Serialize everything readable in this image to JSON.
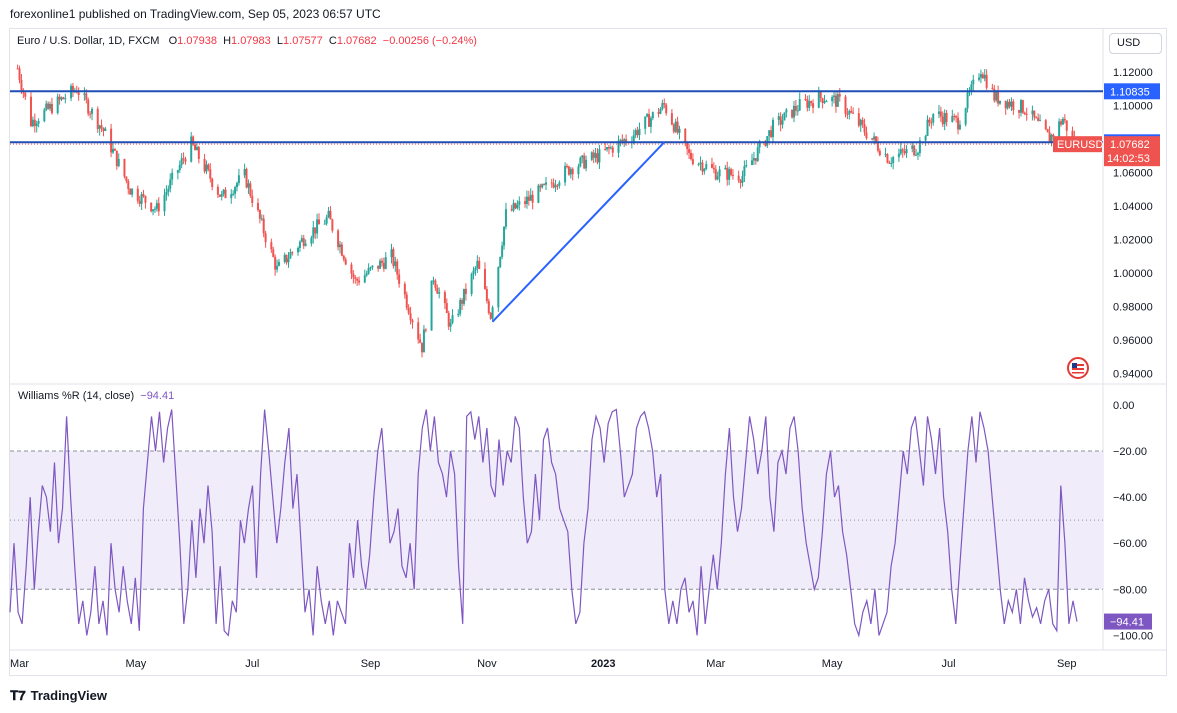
{
  "header": {
    "published": "forexonline1 published on TradingView.com, Sep 05, 2023 06:57 UTC"
  },
  "legend": {
    "symbol": "Euro / U.S. Dollar, 1D, FXCM",
    "o_label": "O",
    "o": "1.07938",
    "h_label": "H",
    "h": "1.07983",
    "l_label": "L",
    "l": "1.07577",
    "c_label": "C",
    "c": "1.07682",
    "change": "−0.00256 (−0.24%)"
  },
  "currency_button": "USD",
  "indicator": {
    "name": "Williams %R (14, close)",
    "value": "−94.41"
  },
  "footer": {
    "brand": "TradingView"
  },
  "colors": {
    "up": "#26a69a",
    "down": "#ef5350",
    "line": "#2962ff",
    "level": "#1e4fb5",
    "wr": "#7e57c2",
    "band": "#f0ecfa",
    "price_tag": "#ef5350",
    "level_tag": "#2962ff"
  },
  "chart_data": [
    {
      "type": "candlestick",
      "symbol": "EURUSD",
      "timeframe": "1D",
      "x_labels": [
        "Mar",
        "May",
        "Jul",
        "Sep",
        "Nov",
        "2023",
        "Mar",
        "May",
        "Jul",
        "Sep"
      ],
      "y_ticks": [
        "1.12000",
        "1.10000",
        "1.08000",
        "1.06000",
        "1.04000",
        "1.02000",
        "1.00000",
        "0.98000",
        "0.96000",
        "0.94000"
      ],
      "y_tick_values": [
        1.12,
        1.1,
        1.08,
        1.06,
        1.04,
        1.02,
        1.0,
        0.98,
        0.96,
        0.94
      ],
      "ylim": [
        0.935,
        1.13
      ],
      "close_path": [
        {
          "date": "2022-02-28",
          "close": 1.122
        },
        {
          "date": "2022-03-07",
          "close": 1.09
        },
        {
          "date": "2022-03-31",
          "close": 1.11
        },
        {
          "date": "2022-04-14",
          "close": 1.085
        },
        {
          "date": "2022-04-28",
          "close": 1.05
        },
        {
          "date": "2022-05-12",
          "close": 1.038
        },
        {
          "date": "2022-05-30",
          "close": 1.077
        },
        {
          "date": "2022-06-15",
          "close": 1.045
        },
        {
          "date": "2022-06-27",
          "close": 1.058
        },
        {
          "date": "2022-07-14",
          "close": 1.002
        },
        {
          "date": "2022-07-29",
          "close": 1.022
        },
        {
          "date": "2022-08-10",
          "close": 1.033
        },
        {
          "date": "2022-08-24",
          "close": 0.995
        },
        {
          "date": "2022-09-12",
          "close": 1.01
        },
        {
          "date": "2022-09-28",
          "close": 0.956
        },
        {
          "date": "2022-10-04",
          "close": 0.998
        },
        {
          "date": "2022-10-13",
          "close": 0.968
        },
        {
          "date": "2022-10-27",
          "close": 1.005
        },
        {
          "date": "2022-11-03",
          "close": 0.975
        },
        {
          "date": "2022-11-11",
          "close": 1.035
        },
        {
          "date": "2022-12-01",
          "close": 1.05
        },
        {
          "date": "2022-12-15",
          "close": 1.063
        },
        {
          "date": "2022-12-30",
          "close": 1.07
        },
        {
          "date": "2023-01-16",
          "close": 1.082
        },
        {
          "date": "2023-02-02",
          "close": 1.1
        },
        {
          "date": "2023-02-15",
          "close": 1.07
        },
        {
          "date": "2023-03-01",
          "close": 1.06
        },
        {
          "date": "2023-03-15",
          "close": 1.058
        },
        {
          "date": "2023-03-31",
          "close": 1.087
        },
        {
          "date": "2023-04-14",
          "close": 1.1
        },
        {
          "date": "2023-04-26",
          "close": 1.105
        },
        {
          "date": "2023-05-05",
          "close": 1.102
        },
        {
          "date": "2023-05-31",
          "close": 1.068
        },
        {
          "date": "2023-06-15",
          "close": 1.075
        },
        {
          "date": "2023-06-23",
          "close": 1.095
        },
        {
          "date": "2023-07-06",
          "close": 1.09
        },
        {
          "date": "2023-07-18",
          "close": 1.122
        },
        {
          "date": "2023-07-25",
          "close": 1.105
        },
        {
          "date": "2023-08-10",
          "close": 1.098
        },
        {
          "date": "2023-08-23",
          "close": 1.08
        },
        {
          "date": "2023-08-30",
          "close": 1.092
        },
        {
          "date": "2023-09-05",
          "close": 1.0768
        }
      ],
      "horizontal_levels": [
        1.10835,
        1.07794
      ],
      "trendline": [
        {
          "date": "2022-11-04",
          "price": 0.971
        },
        {
          "date": "2023-02-02",
          "price": 1.078
        }
      ],
      "price_labels": {
        "level_top": "1.10835",
        "level_bottom": "1.07794",
        "last_price": "1.07682",
        "symbol_tag": "EURUSD",
        "countdown": "14:02:53"
      }
    },
    {
      "type": "line",
      "name": "Williams %R (14, close)",
      "y_ticks": [
        "0.00",
        "−20.00",
        "−40.00",
        "−60.00",
        "−80.00",
        "−100.00"
      ],
      "y_tick_values": [
        0,
        -20,
        -40,
        -60,
        -80,
        -100
      ],
      "ylim": [
        -102,
        3
      ],
      "levels": [
        -20,
        -50,
        -80
      ],
      "last_value": "−94.41",
      "values": [
        -90,
        -60,
        -90,
        -95,
        -70,
        -40,
        -80,
        -55,
        -35,
        -40,
        -55,
        -25,
        -60,
        -45,
        -5,
        -40,
        -70,
        -95,
        -85,
        -100,
        -90,
        -70,
        -95,
        -85,
        -100,
        -60,
        -80,
        -90,
        -70,
        -85,
        -95,
        -75,
        -98,
        -45,
        -25,
        -5,
        -20,
        -3,
        -25,
        -10,
        -2,
        -30,
        -60,
        -95,
        -80,
        -50,
        -75,
        -45,
        -60,
        -35,
        -55,
        -95,
        -70,
        -98,
        -100,
        -85,
        -90,
        -50,
        -60,
        -45,
        -35,
        -75,
        -30,
        -2,
        -20,
        -40,
        -60,
        -45,
        -25,
        -10,
        -45,
        -30,
        -60,
        -90,
        -80,
        -100,
        -70,
        -85,
        -95,
        -85,
        -100,
        -85,
        -90,
        -95,
        -60,
        -75,
        -50,
        -70,
        -80,
        -65,
        -40,
        -20,
        -10,
        -35,
        -60,
        -55,
        -45,
        -70,
        -75,
        -60,
        -80,
        -30,
        -10,
        -2,
        -20,
        -5,
        -25,
        -30,
        -40,
        -20,
        -30,
        -70,
        -95,
        -5,
        -3,
        -15,
        -5,
        -25,
        -10,
        -35,
        -40,
        -15,
        -35,
        -20,
        -25,
        -5,
        -10,
        -40,
        -60,
        -55,
        -30,
        -50,
        -15,
        -10,
        -25,
        -30,
        -45,
        -50,
        -55,
        -80,
        -95,
        -90,
        -60,
        -45,
        -15,
        -5,
        -10,
        -25,
        -8,
        -3,
        -2,
        -20,
        -40,
        -35,
        -30,
        -10,
        -5,
        -3,
        -10,
        -20,
        -40,
        -30,
        -80,
        -95,
        -85,
        -95,
        -80,
        -75,
        -90,
        -85,
        -100,
        -70,
        -95,
        -80,
        -65,
        -80,
        -60,
        -30,
        -10,
        -40,
        -55,
        -45,
        -25,
        -5,
        -15,
        -30,
        -20,
        -5,
        -40,
        -55,
        -25,
        -20,
        -30,
        -10,
        -5,
        -20,
        -45,
        -60,
        -70,
        -80,
        -75,
        -55,
        -30,
        -20,
        -40,
        -35,
        -55,
        -65,
        -80,
        -95,
        -100,
        -90,
        -85,
        -95,
        -80,
        -100,
        -95,
        -90,
        -70,
        -60,
        -40,
        -20,
        -30,
        -10,
        -5,
        -20,
        -35,
        -5,
        -15,
        -30,
        -10,
        -40,
        -55,
        -80,
        -95,
        -70,
        -45,
        -20,
        -5,
        -25,
        -3,
        -10,
        -20,
        -40,
        -60,
        -80,
        -95,
        -85,
        -90,
        -80,
        -95,
        -75,
        -85,
        -92,
        -88,
        -95,
        -85,
        -80,
        -95,
        -98,
        -35,
        -60,
        -95,
        -85,
        -94
      ]
    }
  ]
}
